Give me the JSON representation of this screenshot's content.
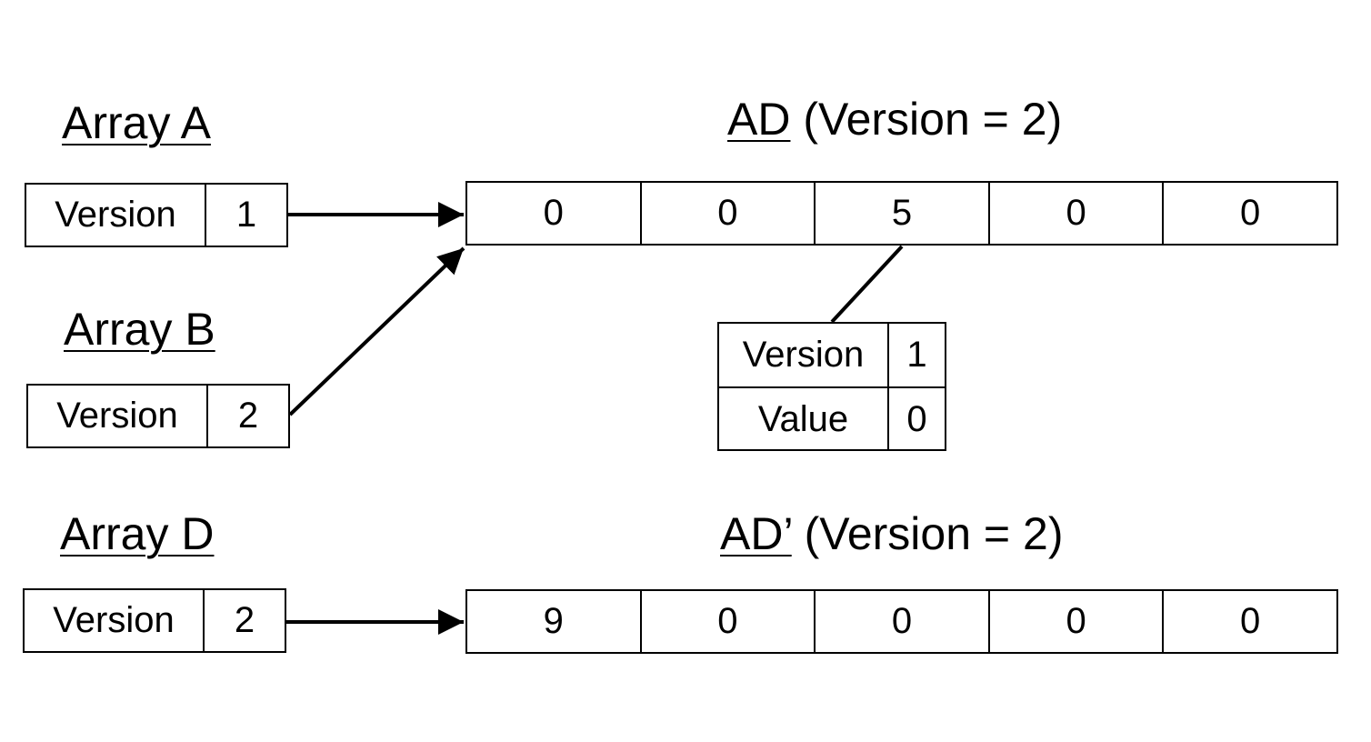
{
  "array_a": {
    "title": "Array A",
    "version_label": "Version",
    "version": "1"
  },
  "array_b": {
    "title": "Array B",
    "version_label": "Version",
    "version": "2"
  },
  "array_d": {
    "title": "Array D",
    "version_label": "Version",
    "version": "2"
  },
  "ad": {
    "title_main": "AD",
    "title_suffix": " (Version = 2)",
    "cells": [
      "0",
      "0",
      "5",
      "0",
      "0"
    ]
  },
  "ad_prime": {
    "title_main": "AD’",
    "title_suffix": " (Version = 2)",
    "cells": [
      "9",
      "0",
      "0",
      "0",
      "0"
    ]
  },
  "diff_node": {
    "version_label": "Version",
    "version": "1",
    "value_label": "Value",
    "value": "0"
  }
}
